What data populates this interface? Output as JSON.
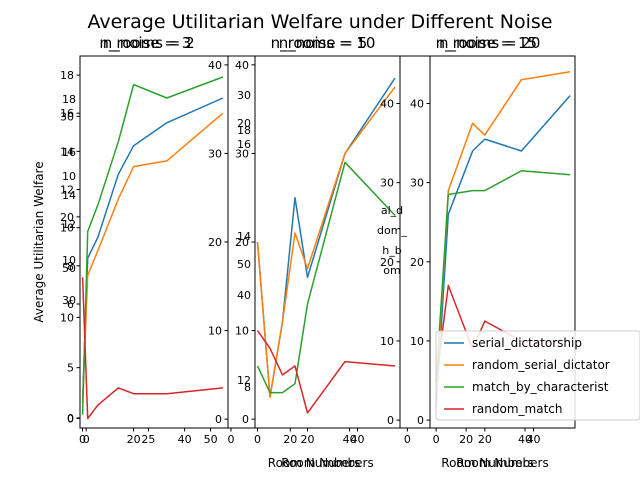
{
  "figure": {
    "suptitle": "Average Utilitarian Welfare under Different Noise"
  },
  "colors": {
    "serial_dictatorship": "#1f77b4",
    "random_serial_dictatorship": "#ff7f0e",
    "match_by_characteristics": "#2ca02c",
    "random_match": "#d62728",
    "axes": "#000000",
    "background": "#ffffff"
  },
  "chart_data": [
    {
      "type": "line",
      "title": "n_rooms = 2",
      "xlabel": "",
      "ylabel": "Average Utilitarian Welfare",
      "xlim": [
        -1,
        57
      ],
      "ylim": [
        -0.5,
        19
      ],
      "xticks": [
        0,
        20,
        40
      ],
      "yticks": [
        0,
        6,
        8,
        10,
        12,
        14,
        16,
        18
      ],
      "x": [
        0,
        2,
        6,
        14,
        20,
        33,
        55
      ],
      "series": [
        {
          "key": "serial_dictatorship",
          "values": [
            1.0,
            8.4,
            9.5,
            12.8,
            14.3,
            15.5,
            16.8
          ]
        },
        {
          "key": "random_serial_dictatorship",
          "values": [
            0.8,
            7.5,
            8.8,
            11.5,
            13.2,
            13.5,
            16.0
          ]
        },
        {
          "key": "match_by_characteristics",
          "values": [
            0.2,
            9.8,
            11.2,
            14.5,
            17.5,
            16.8,
            17.9
          ]
        },
        {
          "key": "random_match",
          "values": [
            7.4,
            0.0,
            0.7,
            1.6,
            1.3,
            1.3,
            1.6
          ]
        }
      ]
    },
    {
      "type": "line",
      "title": "n_noise = 3",
      "xlabel": "",
      "ylabel": "",
      "xlim": [
        -2.5,
        57
      ],
      "ylim": [
        -1,
        36
      ],
      "xticks": [
        0,
        25,
        50
      ],
      "yticks": [
        0,
        5,
        10,
        20,
        30
      ],
      "show_yticks": false
    },
    {
      "type": "line",
      "title": "n_rooms = 10",
      "xlabel": "Room Numbers",
      "ylabel": "",
      "xlim": [
        -1,
        57
      ],
      "ylim": [
        -1,
        41
      ],
      "xticks": [
        0,
        20,
        40
      ],
      "yticks": [
        0,
        10,
        20,
        30,
        40
      ],
      "x": [
        0,
        5,
        10,
        15,
        20,
        35,
        55
      ],
      "series": [
        {
          "key": "serial_dictatorship",
          "values": [
            20.0,
            2.5,
            11.0,
            25.0,
            16.0,
            30.0,
            38.5
          ]
        },
        {
          "key": "random_serial_dictatorship",
          "values": [
            20.0,
            2.5,
            11.0,
            21.0,
            17.0,
            30.0,
            37.5
          ]
        },
        {
          "key": "match_by_characteristics",
          "values": [
            6.0,
            3.0,
            3.0,
            4.0,
            13.0,
            29.0,
            23.0
          ]
        },
        {
          "key": "random_match",
          "values": [
            10.0,
            8.0,
            5.0,
            6.0,
            0.7,
            6.5,
            6.0
          ]
        }
      ]
    },
    {
      "type": "line",
      "title": "n_noise = 5",
      "xlabel": "Room Numbers",
      "ylabel": "",
      "xlim": [
        -1,
        57
      ],
      "ylim": [
        -1,
        41
      ],
      "xticks": [
        0,
        20,
        40
      ],
      "yticks": [
        0,
        10,
        20,
        30,
        40
      ],
      "show_yticks": false
    },
    {
      "type": "line",
      "title": "n_rooms = 20",
      "xlabel": "Room Numbers",
      "ylabel": "",
      "xlim": [
        -2.5,
        57
      ],
      "ylim": [
        -1,
        46
      ],
      "xticks": [
        0,
        20,
        40
      ],
      "yticks": [
        0,
        10,
        20,
        30,
        40
      ],
      "x": [
        0,
        5,
        15,
        20,
        35,
        55
      ],
      "series": [
        {
          "key": "serial_dictatorship",
          "values": [
            1.5,
            26.0,
            34.0,
            35.5,
            34.0,
            41.0
          ]
        },
        {
          "key": "random_serial_dictatorship",
          "values": [
            3.0,
            29.0,
            37.5,
            36.0,
            43.0,
            44.0
          ]
        },
        {
          "key": "match_by_characteristics",
          "values": [
            5.0,
            28.5,
            29.0,
            29.0,
            31.5,
            31.0
          ]
        },
        {
          "key": "random_match",
          "values": [
            5.0,
            17.0,
            9.0,
            12.5,
            10.0,
            10.0
          ]
        }
      ]
    },
    {
      "type": "line",
      "title": "n_noise = 15",
      "xlabel": "Room Numbers",
      "ylabel": "",
      "xlim": [
        -2.5,
        57
      ],
      "ylim": [
        -1,
        46
      ],
      "xticks": [
        0,
        20,
        40
      ],
      "yticks": [
        0,
        10,
        20,
        30,
        40
      ],
      "show_yticks": false
    }
  ],
  "overlay_ticks": {
    "left_mid": [
      "10",
      "12",
      "14",
      "16",
      "18",
      "10",
      "30",
      "50"
    ],
    "center_mid": [
      "14",
      "16",
      "18",
      "20",
      "30",
      "40",
      "50",
      "12",
      "8"
    ]
  },
  "legend": {
    "placement": "lower-right",
    "entries": [
      {
        "key": "serial_dictatorship",
        "label": "serial_dictatorship"
      },
      {
        "key": "random_serial_dictatorship",
        "label": "random_serial_dictator"
      },
      {
        "key": "match_by_characteristics",
        "label": "match_by_characterist"
      },
      {
        "key": "random_match",
        "label": "random_match"
      }
    ]
  },
  "stray_legend_text": [
    "al_d",
    "dom_",
    "h_b",
    "om"
  ]
}
